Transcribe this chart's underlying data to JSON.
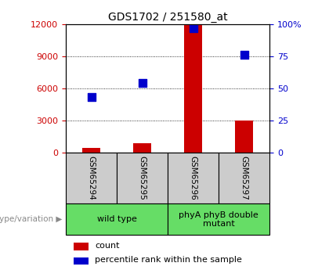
{
  "title": "GDS1702 / 251580_at",
  "samples": [
    "GSM65294",
    "GSM65295",
    "GSM65296",
    "GSM65297"
  ],
  "counts": [
    400,
    900,
    12000,
    3000
  ],
  "percentiles": [
    43,
    54,
    97,
    76
  ],
  "ylim_left": [
    0,
    12000
  ],
  "ylim_right": [
    0,
    100
  ],
  "yticks_left": [
    0,
    3000,
    6000,
    9000,
    12000
  ],
  "yticks_right": [
    0,
    25,
    50,
    75,
    100
  ],
  "ytick_labels_right": [
    "0",
    "25",
    "50",
    "75",
    "100%"
  ],
  "bar_color": "#cc0000",
  "scatter_color": "#0000cc",
  "bar_width": 0.35,
  "group_labels": [
    "wild type",
    "phyA phyB double\nmutant"
  ],
  "group_color": "#66dd66",
  "genotype_label": "genotype/variation",
  "legend_count_label": "count",
  "legend_percentile_label": "percentile rank within the sample",
  "axis_left_color": "#cc0000",
  "axis_right_color": "#0000cc",
  "gray_box_color": "#cccccc",
  "scatter_size": 55,
  "title_fontsize": 10,
  "tick_fontsize": 8,
  "label_fontsize": 8
}
